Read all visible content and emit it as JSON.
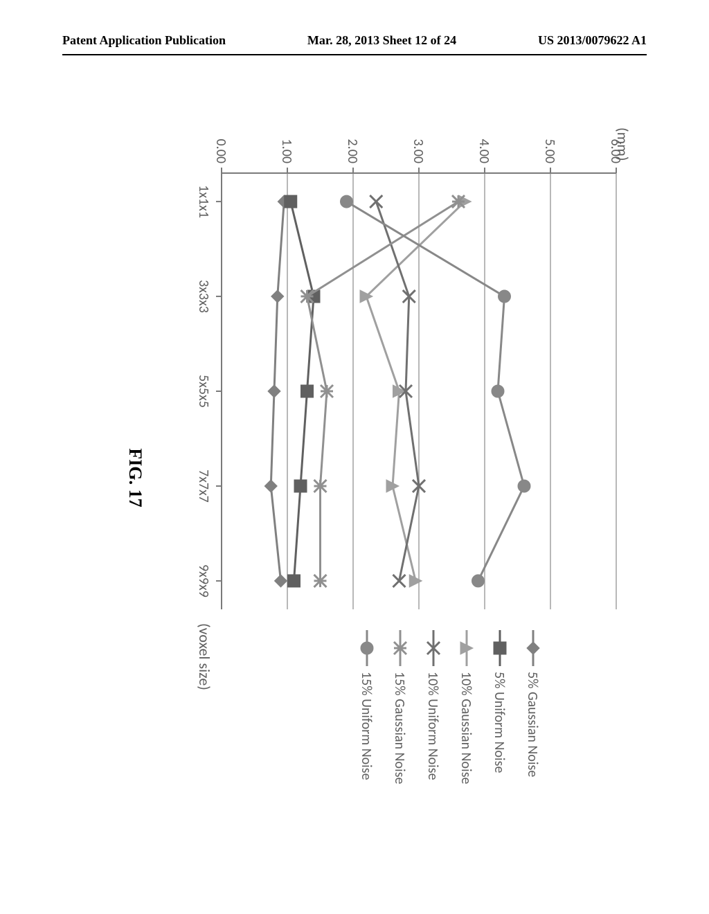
{
  "header": {
    "left": "Patent Application Publication",
    "center": "Mar. 28, 2013  Sheet 12 of 24",
    "right": "US 2013/0079622 A1"
  },
  "figure": {
    "caption": "FIG. 17",
    "type": "line",
    "x_label": "(voxel size)",
    "y_label": "(mm)",
    "categories": [
      "1x1x1",
      "3x3x3",
      "5x5x5",
      "7x7x7",
      "9x9x9"
    ],
    "ylim": [
      0,
      6
    ],
    "ytick_step": 1,
    "ytick_labels": [
      "0.00",
      "1.00",
      "2.00",
      "3.00",
      "4.00",
      "5.00",
      "6.00"
    ],
    "plot_bg": "#ffffff",
    "grid_color": "#b8b8b8",
    "axis_color": "#7a7a7a",
    "tick_fontsize": 20,
    "label_fontsize": 22,
    "legend_fontsize": 20,
    "series": [
      {
        "name": "5% Gaussian Noise",
        "marker": "diamond",
        "color": "#808080",
        "values": [
          0.95,
          0.85,
          0.8,
          0.75,
          0.9
        ]
      },
      {
        "name": "5% Uniform Noise",
        "marker": "square",
        "color": "#606060",
        "values": [
          1.05,
          1.4,
          1.3,
          1.2,
          1.1
        ]
      },
      {
        "name": "10% Gaussian Noise",
        "marker": "triangle",
        "color": "#a0a0a0",
        "values": [
          3.7,
          2.2,
          2.7,
          2.6,
          2.95
        ]
      },
      {
        "name": "10% Uniform Noise",
        "marker": "x",
        "color": "#707070",
        "values": [
          2.35,
          2.85,
          2.8,
          3.0,
          2.7
        ]
      },
      {
        "name": "15% Gaussian Noise",
        "marker": "asterisk",
        "color": "#909090",
        "values": [
          3.6,
          1.3,
          1.6,
          1.5,
          1.5
        ]
      },
      {
        "name": "15% Uniform Noise",
        "marker": "circle",
        "color": "#888888",
        "values": [
          1.9,
          4.3,
          4.2,
          4.6,
          3.9
        ]
      }
    ],
    "line_width": 3,
    "marker_size": 9
  }
}
